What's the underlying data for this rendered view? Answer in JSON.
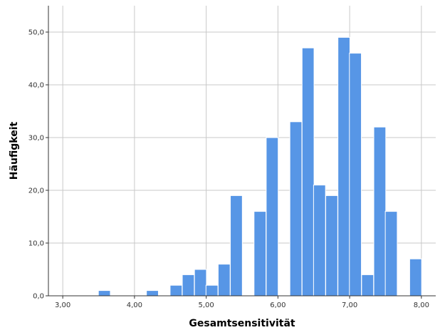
{
  "chart_data": {
    "type": "bar",
    "subtype": "histogram",
    "title": "",
    "xlabel": "Gesamtsensitivität",
    "ylabel": "Häufigkeit",
    "xlim": [
      2.8,
      8.2
    ],
    "ylim": [
      0,
      55
    ],
    "x_ticks": [
      "3,00",
      "4,00",
      "5,00",
      "6,00",
      "7,00",
      "8,00"
    ],
    "x_tick_values": [
      3,
      4,
      5,
      6,
      7,
      8
    ],
    "y_ticks": [
      "0,0",
      "10,0",
      "20,0",
      "30,0",
      "40,0",
      "50,0"
    ],
    "y_tick_values": [
      0,
      10,
      20,
      30,
      40,
      50
    ],
    "grid": true,
    "legend": "none",
    "bar_color": "#5796e6",
    "bin_width": 0.1667,
    "bins": [
      {
        "center": 3.5,
        "value": 0
      },
      {
        "center": 3.58,
        "value": 1
      },
      {
        "center": 4.25,
        "value": 1
      },
      {
        "center": 4.58,
        "value": 2
      },
      {
        "center": 4.75,
        "value": 4
      },
      {
        "center": 4.92,
        "value": 5
      },
      {
        "center": 5.08,
        "value": 2
      },
      {
        "center": 5.25,
        "value": 6
      },
      {
        "center": 5.42,
        "value": 19
      },
      {
        "center": 5.75,
        "value": 16
      },
      {
        "center": 5.92,
        "value": 30
      },
      {
        "center": 6.25,
        "value": 33
      },
      {
        "center": 6.42,
        "value": 47
      },
      {
        "center": 6.58,
        "value": 21
      },
      {
        "center": 6.75,
        "value": 19
      },
      {
        "center": 6.92,
        "value": 49
      },
      {
        "center": 7.08,
        "value": 46
      },
      {
        "center": 7.25,
        "value": 4
      },
      {
        "center": 7.42,
        "value": 32
      },
      {
        "center": 7.58,
        "value": 16
      },
      {
        "center": 7.92,
        "value": 7
      }
    ]
  }
}
